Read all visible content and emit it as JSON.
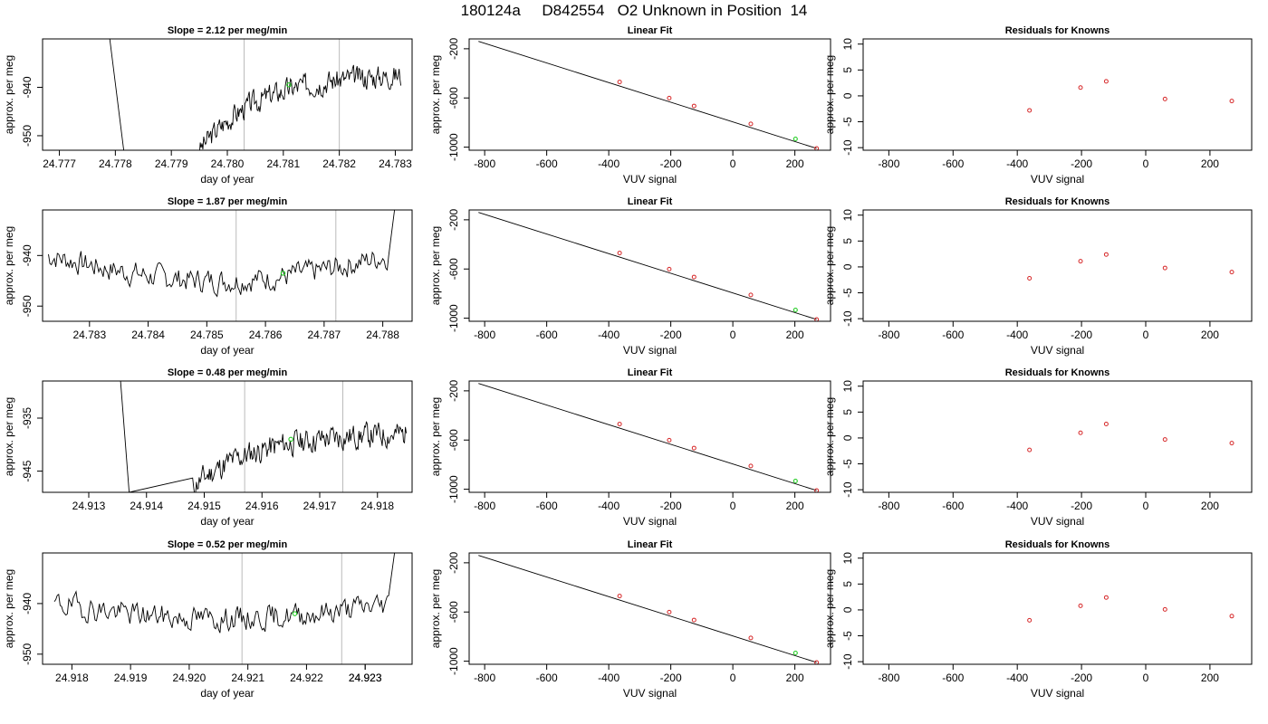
{
  "title": "180124a     D842554   O2 Unknown in Position  14",
  "colors": {
    "trace": "#000000",
    "known_point": "#d62728",
    "unknown_point": "#22cc22",
    "cal_line": "#bbbbbb"
  },
  "chart_data": [
    {
      "type": "line",
      "panel": "timeseries",
      "title": "Slope =  2.12  per meg/min",
      "xlabel": "day of year",
      "ylabel": "approx. per meg",
      "xlim": [
        24.7767,
        24.7833
      ],
      "ylim": [
        -953,
        -930
      ],
      "xticks": [
        "24.777",
        "24.778",
        "24.779",
        "24.780",
        "24.781",
        "24.782",
        "24.783"
      ],
      "yticks": [
        "-950",
        "-940"
      ],
      "vlines": [
        24.7803,
        24.782
      ],
      "unknown_point": {
        "x": 24.7811,
        "y": -939.5
      },
      "trace": {
        "x0": 24.7795,
        "x1": 24.7831,
        "start": -953,
        "end": -937.5,
        "seed": 3
      },
      "spikes": [
        [
          24.7779,
          -930
        ],
        [
          24.77815,
          -953
        ]
      ]
    },
    {
      "type": "line",
      "panel": "timeseries",
      "title": "Slope =  1.87  per meg/min",
      "xlabel": "day of year",
      "ylabel": "approx. per meg",
      "xlim": [
        24.7822,
        24.7885
      ],
      "ylim": [
        -953,
        -931
      ],
      "xticks": [
        "24.783",
        "24.784",
        "24.785",
        "24.786",
        "24.787",
        "24.788"
      ],
      "yticks": [
        "-950",
        "-940"
      ],
      "vlines": [
        24.7855,
        24.7872
      ],
      "unknown_point": {
        "x": 24.7863,
        "y": -943.5
      },
      "trace": {
        "x0": 24.7823,
        "x1": 24.7881,
        "start": -940,
        "end": -940,
        "seed": 7,
        "dip": -945
      },
      "end_spike": [
        24.7882,
        -931
      ]
    },
    {
      "type": "line",
      "panel": "timeseries",
      "title": "Slope =  0.48  per meg/min",
      "xlabel": "day of year",
      "ylabel": "approx. per meg",
      "xlim": [
        24.9122,
        24.9186
      ],
      "ylim": [
        -949,
        -928
      ],
      "xticks": [
        "24.913",
        "24.914",
        "24.915",
        "24.916",
        "24.917",
        "24.918"
      ],
      "yticks": [
        "-945",
        "-935"
      ],
      "vlines": [
        24.9157,
        24.9174
      ],
      "unknown_point": {
        "x": 24.9165,
        "y": -939
      },
      "trace": {
        "x0": 24.9148,
        "x1": 24.9185,
        "start": -948,
        "end": -938,
        "seed": 11
      },
      "spikes": [
        [
          24.91355,
          -928
        ],
        [
          24.9137,
          -949
        ]
      ]
    },
    {
      "type": "line",
      "panel": "timeseries",
      "title": "Slope =  0.52  per meg/min",
      "xlabel": "day of year",
      "ylabel": "approx. per meg",
      "xlim": [
        24.9175,
        24.9238
      ],
      "ylim": [
        -952,
        -930
      ],
      "xticks": [
        "24.918",
        "24.919",
        "24.920",
        "24.921",
        "24.922",
        "24.923",
        "24.923"
      ],
      "yticks": [
        "-950",
        "-940"
      ],
      "vlines": [
        24.9209,
        24.9226
      ],
      "unknown_point": {
        "x": 24.9218,
        "y": -942
      },
      "trace": {
        "x0": 24.9177,
        "x1": 24.9234,
        "start": -940,
        "end": -939,
        "seed": 19,
        "dip": -943
      },
      "end_spike": [
        24.9235,
        -930
      ]
    }
  ],
  "fit_panels": [
    {
      "type": "scatter",
      "panel": "linear-fit",
      "title": "Linear Fit",
      "xlabel": "VUV signal",
      "ylabel": "approx. per meg",
      "xlim": [
        -850,
        315
      ],
      "ylim": [
        -1025,
        -120
      ],
      "xticks": [
        "-800",
        "-600",
        "-400",
        "-200",
        "0",
        "200"
      ],
      "yticks": [
        "-1000",
        "-600",
        "-200"
      ],
      "line": {
        "x": [
          -820,
          270
        ],
        "y": [
          -140,
          -1010
        ]
      },
      "knowns": {
        "x": [
          -365,
          -205,
          -125,
          58,
          270
        ],
        "y": [
          -470,
          -601,
          -665,
          -811,
          -1010
        ]
      },
      "unknown": {
        "x": 202,
        "y": -933
      }
    },
    {
      "type": "scatter",
      "panel": "residuals",
      "title": "Residuals for Knowns",
      "xlabel": "VUV signal",
      "ylabel": "approx. per meg",
      "xlim": [
        -880,
        330
      ],
      "ylim": [
        -10.5,
        11
      ],
      "xticks": [
        "-800",
        "-600",
        "-400",
        "-200",
        "0",
        "200"
      ],
      "yticks": [
        "-10",
        "-5",
        "0",
        "5",
        "10"
      ]
    }
  ],
  "residuals": [
    {
      "x": [
        -362,
        -203,
        -123,
        60,
        268
      ],
      "y": [
        -2.8,
        1.6,
        2.8,
        -0.6,
        -1.0
      ]
    },
    {
      "x": [
        -362,
        -203,
        -123,
        60,
        268
      ],
      "y": [
        -2.2,
        1.1,
        2.4,
        -0.2,
        -1.0
      ]
    },
    {
      "x": [
        -362,
        -203,
        -123,
        60,
        268
      ],
      "y": [
        -2.3,
        1.0,
        2.7,
        -0.3,
        -1.0
      ]
    },
    {
      "x": [
        -362,
        -203,
        -123,
        60,
        268
      ],
      "y": [
        -2.0,
        0.8,
        2.4,
        0.1,
        -1.2
      ]
    }
  ]
}
